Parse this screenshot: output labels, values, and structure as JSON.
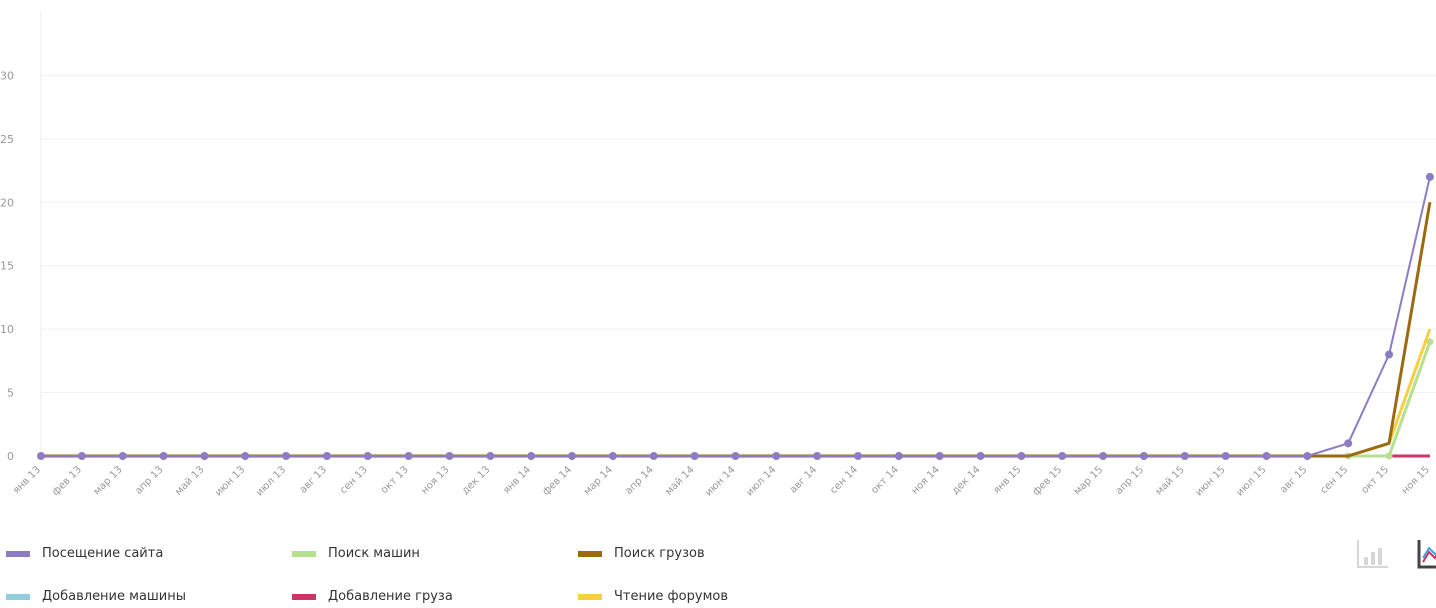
{
  "chart_data": {
    "type": "line",
    "categories": [
      "янв 13",
      "фев 13",
      "мар 13",
      "апр 13",
      "май 13",
      "июн 13",
      "июл 13",
      "авг 13",
      "сен 13",
      "окт 13",
      "ноя 13",
      "дек 13",
      "янв 14",
      "фев 14",
      "мар 14",
      "апр 14",
      "май 14",
      "июн 14",
      "июл 14",
      "авг 14",
      "сен 14",
      "окт 14",
      "ноя 14",
      "дек 14",
      "янв 15",
      "фев 15",
      "мар 15",
      "апр 15",
      "май 15",
      "июн 15",
      "июл 15",
      "авг 15",
      "сен 15",
      "окт 15",
      "ноя 15"
    ],
    "yticks": [
      0,
      5,
      10,
      15,
      20,
      25,
      30
    ],
    "ylim": [
      0,
      35
    ],
    "grid": true,
    "legend_position": "bottom",
    "series": [
      {
        "name": "Посещение сайта",
        "color": "#8e7cc3",
        "markers": true,
        "values": [
          0,
          0,
          0,
          0,
          0,
          0,
          0,
          0,
          0,
          0,
          0,
          0,
          0,
          0,
          0,
          0,
          0,
          0,
          0,
          0,
          0,
          0,
          0,
          0,
          0,
          0,
          0,
          0,
          0,
          0,
          0,
          0,
          1,
          8,
          22
        ]
      },
      {
        "name": "Поиск машин",
        "color": "#b6e08f",
        "markers": true,
        "values": [
          0,
          0,
          0,
          0,
          0,
          0,
          0,
          0,
          0,
          0,
          0,
          0,
          0,
          0,
          0,
          0,
          0,
          0,
          0,
          0,
          0,
          0,
          0,
          0,
          0,
          0,
          0,
          0,
          0,
          0,
          0,
          0,
          0,
          0,
          9
        ]
      },
      {
        "name": "Поиск грузов",
        "color": "#9b6a10",
        "markers": false,
        "values": [
          0,
          0,
          0,
          0,
          0,
          0,
          0,
          0,
          0,
          0,
          0,
          0,
          0,
          0,
          0,
          0,
          0,
          0,
          0,
          0,
          0,
          0,
          0,
          0,
          0,
          0,
          0,
          0,
          0,
          0,
          0,
          0,
          0,
          1,
          20
        ]
      },
      {
        "name": "Добавление машины",
        "color": "#92cde0",
        "markers": false,
        "values": [
          0,
          0,
          0,
          0,
          0,
          0,
          0,
          0,
          0,
          0,
          0,
          0,
          0,
          0,
          0,
          0,
          0,
          0,
          0,
          0,
          0,
          0,
          0,
          0,
          0,
          0,
          0,
          0,
          0,
          0,
          0,
          0,
          0,
          0,
          0
        ]
      },
      {
        "name": "Добавление груза",
        "color": "#cc3366",
        "markers": false,
        "values": [
          0,
          0,
          0,
          0,
          0,
          0,
          0,
          0,
          0,
          0,
          0,
          0,
          0,
          0,
          0,
          0,
          0,
          0,
          0,
          0,
          0,
          0,
          0,
          0,
          0,
          0,
          0,
          0,
          0,
          0,
          0,
          0,
          0,
          0,
          0
        ]
      },
      {
        "name": "Чтение форумов",
        "color": "#f5d040",
        "markers": false,
        "values": [
          0,
          0,
          0,
          0,
          0,
          0,
          0,
          0,
          0,
          0,
          0,
          0,
          0,
          0,
          0,
          0,
          0,
          0,
          0,
          0,
          0,
          0,
          0,
          0,
          0,
          0,
          0,
          0,
          0,
          0,
          0,
          0,
          0,
          1,
          10
        ]
      }
    ]
  },
  "legend": {
    "items": [
      {
        "label": "Посещение сайта",
        "color": "#8e7cc3"
      },
      {
        "label": "Поиск машин",
        "color": "#b6e08f"
      },
      {
        "label": "Поиск грузов",
        "color": "#9b6a10"
      },
      {
        "label": "Добавление машины",
        "color": "#92cde0"
      },
      {
        "label": "Добавление груза",
        "color": "#cc3366"
      },
      {
        "label": "Чтение форумов",
        "color": "#f5d040"
      }
    ]
  },
  "toolbar": {
    "bar_chart_icon": "bar-chart-icon",
    "line_chart_icon": "line-chart-icon"
  }
}
